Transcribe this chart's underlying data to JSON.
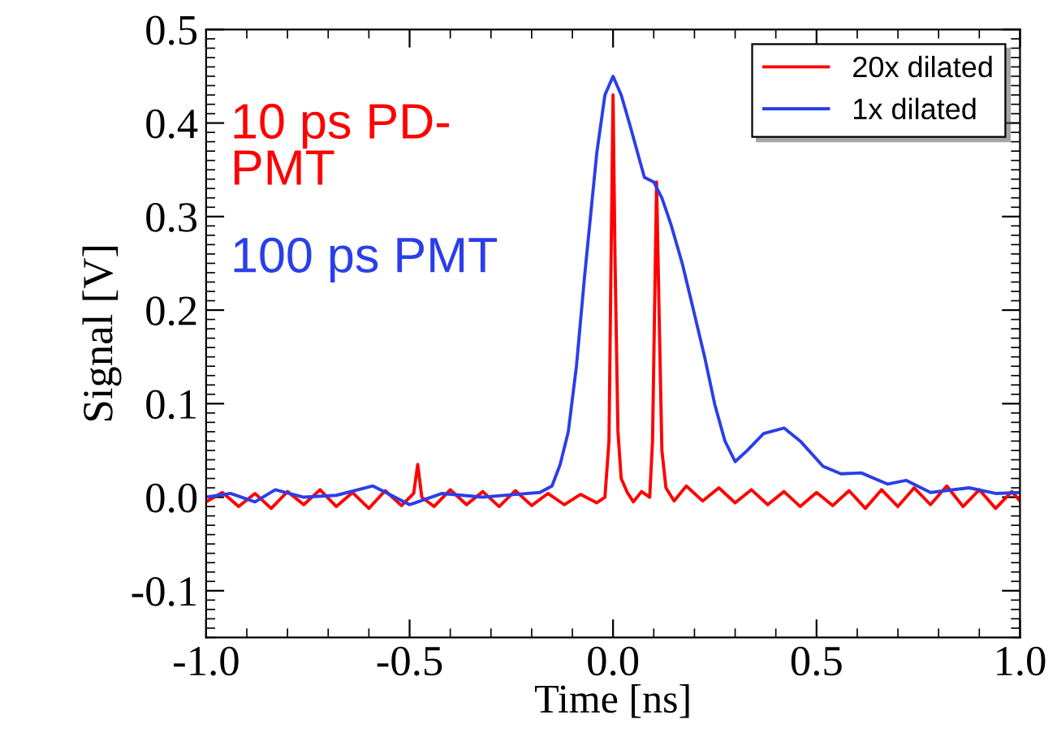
{
  "chart_data": {
    "type": "line",
    "xlabel": "Time [ns]",
    "ylabel": "Signal [V]",
    "xlim": [
      -1.0,
      1.0
    ],
    "ylim": [
      -0.15,
      0.5
    ],
    "xticks": [
      {
        "value": -1.0,
        "label": "-1.0"
      },
      {
        "value": -0.5,
        "label": "-0.5"
      },
      {
        "value": 0.0,
        "label": "0.0"
      },
      {
        "value": 0.5,
        "label": "0.5"
      },
      {
        "value": 1.0,
        "label": "1.0"
      }
    ],
    "yticks": [
      {
        "value": -0.1,
        "label": "-0.1"
      },
      {
        "value": 0.0,
        "label": "0.0"
      },
      0.1,
      0.2,
      0.3,
      0.4,
      0.5
    ],
    "grid": false,
    "legend": "top right",
    "marker": "none",
    "line_style": "solid",
    "annotations": [
      "10 ps PD-\nPMT",
      "100 ps PMT"
    ],
    "series": [
      {
        "name": "20x dilated",
        "color": "#ff0000",
        "x": [
          -1.0,
          -0.96,
          -0.92,
          -0.88,
          -0.84,
          -0.8,
          -0.76,
          -0.72,
          -0.68,
          -0.64,
          -0.6,
          -0.56,
          -0.52,
          -0.49,
          -0.48,
          -0.47,
          -0.44,
          -0.4,
          -0.36,
          -0.32,
          -0.28,
          -0.24,
          -0.2,
          -0.16,
          -0.12,
          -0.08,
          -0.04,
          -0.02,
          -0.01,
          -0.005,
          0.0,
          0.005,
          0.012,
          0.02,
          0.035,
          0.05,
          0.07,
          0.09,
          0.097,
          0.102,
          0.107,
          0.113,
          0.12,
          0.13,
          0.15,
          0.18,
          0.22,
          0.26,
          0.3,
          0.34,
          0.38,
          0.42,
          0.46,
          0.5,
          0.54,
          0.58,
          0.62,
          0.66,
          0.7,
          0.74,
          0.78,
          0.82,
          0.86,
          0.9,
          0.94,
          0.98,
          1.0
        ],
        "values": [
          -0.005,
          0.005,
          -0.01,
          0.004,
          -0.012,
          0.006,
          -0.008,
          0.008,
          -0.01,
          0.005,
          -0.012,
          0.007,
          -0.009,
          0.004,
          0.035,
          0.0,
          -0.01,
          0.008,
          -0.008,
          0.006,
          -0.01,
          0.007,
          -0.009,
          0.004,
          -0.008,
          0.003,
          -0.006,
          0.0,
          0.06,
          0.25,
          0.43,
          0.25,
          0.07,
          0.02,
          0.005,
          -0.005,
          0.006,
          0.0,
          0.06,
          0.2,
          0.337,
          0.2,
          0.05,
          0.01,
          -0.004,
          0.012,
          -0.004,
          0.01,
          -0.006,
          0.008,
          -0.008,
          0.006,
          -0.01,
          0.005,
          -0.009,
          0.007,
          -0.012,
          0.008,
          -0.01,
          0.01,
          -0.008,
          0.012,
          -0.01,
          0.008,
          -0.012,
          0.006,
          -0.004
        ]
      },
      {
        "name": "1x dilated",
        "color": "#2a3fe8",
        "x": [
          -1.0,
          -0.94,
          -0.88,
          -0.83,
          -0.76,
          -0.68,
          -0.59,
          -0.5,
          -0.42,
          -0.32,
          -0.24,
          -0.18,
          -0.15,
          -0.13,
          -0.11,
          -0.09,
          -0.07,
          -0.04,
          -0.02,
          0.0,
          0.02,
          0.04,
          0.077,
          0.1,
          0.12,
          0.142,
          0.17,
          0.196,
          0.225,
          0.25,
          0.275,
          0.3,
          0.33,
          0.37,
          0.42,
          0.46,
          0.516,
          0.56,
          0.61,
          0.675,
          0.72,
          0.78,
          0.875,
          0.94,
          1.0
        ],
        "values": [
          0.0,
          0.004,
          -0.005,
          0.008,
          0.0,
          0.002,
          0.012,
          -0.008,
          0.004,
          0.0,
          0.003,
          0.005,
          0.012,
          0.035,
          0.07,
          0.14,
          0.236,
          0.368,
          0.43,
          0.45,
          0.43,
          0.4,
          0.342,
          0.337,
          0.32,
          0.292,
          0.25,
          0.203,
          0.15,
          0.099,
          0.06,
          0.038,
          0.05,
          0.068,
          0.074,
          0.06,
          0.033,
          0.025,
          0.026,
          0.014,
          0.018,
          0.005,
          0.01,
          0.004,
          0.005
        ]
      }
    ]
  }
}
